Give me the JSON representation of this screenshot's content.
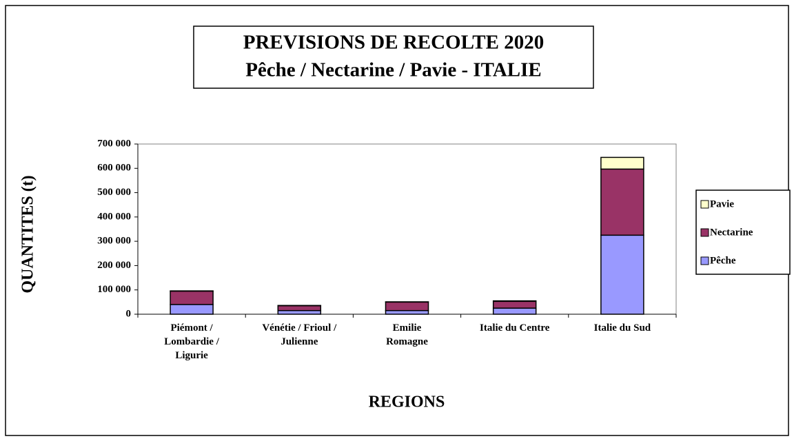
{
  "chart_data": {
    "type": "stacked_bar",
    "title": "PREVISIONS DE RECOLTE 2020",
    "subtitle": "Pêche / Nectarine / Pavie - ITALIE",
    "x_label": "REGIONS",
    "y_label": "QUANTITES (t)",
    "categories": [
      "Piémont / Lombardie / Ligurie",
      "Vénétie / Frioul / Julienne",
      "Emilie Romagne",
      "Italie du Centre",
      "Italie du Sud"
    ],
    "series": [
      {
        "name": "Pêche",
        "color": "#9999ff",
        "values": [
          40000,
          15000,
          15000,
          25000,
          325000
        ]
      },
      {
        "name": "Nectarine",
        "color": "#993366",
        "values": [
          55000,
          20000,
          35000,
          28000,
          272000
        ]
      },
      {
        "name": "Pavie",
        "color": "#ffffcc",
        "values": [
          1000,
          1000,
          1000,
          2000,
          48000
        ]
      }
    ],
    "ylim": [
      0,
      700000
    ],
    "yticks": [
      {
        "value": 0,
        "label": "0"
      },
      {
        "value": 100000,
        "label": "100 000"
      },
      {
        "value": 200000,
        "label": "200 000"
      },
      {
        "value": 300000,
        "label": "300 000"
      },
      {
        "value": 400000,
        "label": "400 000"
      },
      {
        "value": 500000,
        "label": "500 000"
      },
      {
        "value": 600000,
        "label": "600 000"
      },
      {
        "value": 700000,
        "label": "700 000"
      }
    ],
    "grid": false,
    "legend": "right"
  }
}
